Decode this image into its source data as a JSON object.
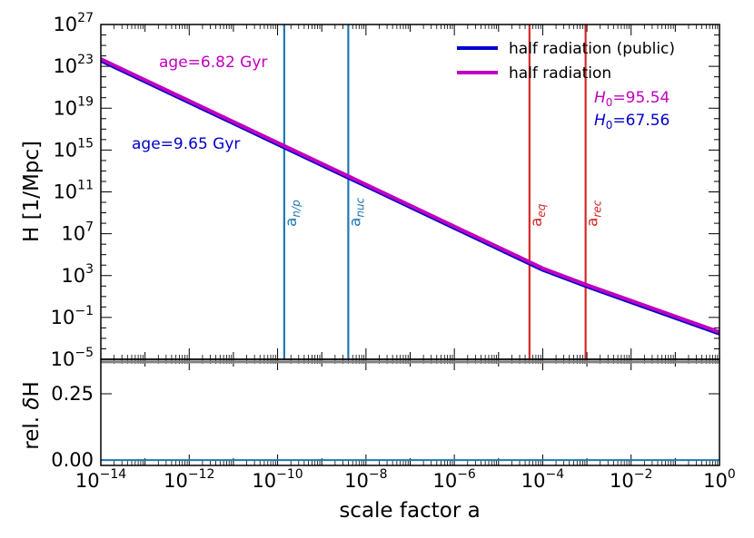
{
  "chart_data": {
    "type": "line",
    "xscale": "log",
    "xlim_exp": [
      -14,
      0
    ],
    "xlabel": "scale factor a",
    "x_tick_exponents": [
      -14,
      -12,
      -10,
      -8,
      -6,
      -4,
      -2,
      0
    ],
    "x_tick_labels": [
      "10",
      "10",
      "10",
      "10",
      "10",
      "10",
      "10",
      "10"
    ],
    "x_tick_sups": [
      "−14",
      "−12",
      "−10",
      "−8",
      "−6",
      "−4",
      "−2",
      "0"
    ],
    "top": {
      "ylabel": "H [1/Mpc]",
      "yscale": "log",
      "ylim_exp": [
        -5,
        27
      ],
      "y_tick_exponents": [
        -5,
        -1,
        3,
        7,
        11,
        15,
        19,
        23,
        27
      ],
      "y_tick_labels": [
        "10",
        "10",
        "10",
        "10",
        "10",
        "10",
        "10",
        "10",
        "10"
      ],
      "y_tick_sups": [
        "−5",
        "−1",
        "3",
        "7",
        "11",
        "15",
        "19",
        "23",
        "27"
      ],
      "series": [
        {
          "name": "half radiation (public)",
          "color": "#0000cc",
          "points_log10": [
            [
              -14,
              23.5
            ],
            [
              -12,
              19.5
            ],
            [
              -10,
              15.5
            ],
            [
              -8,
              11.5
            ],
            [
              -6,
              7.5
            ],
            [
              -4.5,
              4.5
            ],
            [
              -4,
              3.5
            ],
            [
              -3,
              1.9
            ],
            [
              -2,
              0.4
            ],
            [
              0,
              -2.6
            ]
          ]
        },
        {
          "name": "half radiation",
          "color": "#c000c0",
          "points_log10": [
            [
              -14,
              23.7
            ],
            [
              -12,
              19.7
            ],
            [
              -10,
              15.7
            ],
            [
              -8,
              11.7
            ],
            [
              -6,
              7.7
            ],
            [
              -4.5,
              4.7
            ],
            [
              -4,
              3.7
            ],
            [
              -3,
              2.1
            ],
            [
              -2,
              0.6
            ],
            [
              0,
              -2.4
            ]
          ]
        }
      ],
      "vlines": [
        {
          "x_log10": -9.85,
          "label": "a",
          "sub": "n/p",
          "color": "#1f77b4"
        },
        {
          "x_log10": -8.4,
          "label": "a",
          "sub": "nuc",
          "color": "#1f77b4"
        },
        {
          "x_log10": -4.3,
          "label": "a",
          "sub": "eq",
          "color": "#d62728"
        },
        {
          "x_log10": -3.03,
          "label": "a",
          "sub": "rec",
          "color": "#d62728"
        }
      ],
      "annotations": {
        "age_half": "age=6.82 Gyr",
        "age_public": "age=9.65 Gyr",
        "h0_half_symbol": "H",
        "h0_half_sub": "0",
        "h0_half_value": "=95.54",
        "h0_public_symbol": "H",
        "h0_public_sub": "0",
        "h0_public_value": "=67.56"
      }
    },
    "bottom": {
      "ylabel_prefix": "rel. ",
      "ylabel_delta": "δ",
      "ylabel_suffix": "H",
      "ylim": [
        -0.02,
        0.38
      ],
      "y_ticks": [
        0.0,
        0.25
      ],
      "y_tick_labels": [
        "0.00",
        "0.25"
      ],
      "series_value": 0.0,
      "series_color": "#1f77b4",
      "hline_value": 0.37,
      "hline_color": "#808080"
    },
    "legend": {
      "position": "top-right",
      "entries": [
        {
          "label": "half radiation (public)",
          "color": "#0000cc"
        },
        {
          "label": "half radiation",
          "color": "#c000c0"
        }
      ]
    }
  }
}
